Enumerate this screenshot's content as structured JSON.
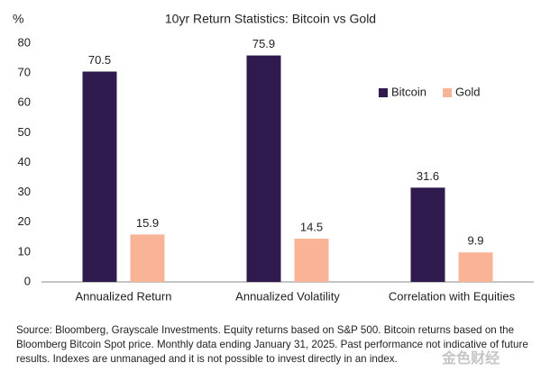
{
  "chart_data": {
    "type": "bar",
    "title": "10yr Return Statistics: Bitcoin vs Gold",
    "y_label": "%",
    "categories": [
      "Annualized Return",
      "Annualized Volatility",
      "Correlation with Equities"
    ],
    "series": [
      {
        "name": "Bitcoin",
        "color": "#2f1b4e",
        "values": [
          70.5,
          75.9,
          31.6
        ]
      },
      {
        "name": "Gold",
        "color": "#f9b497",
        "values": [
          15.9,
          14.5,
          9.9
        ]
      }
    ],
    "ylim": [
      0,
      80
    ],
    "yticks": [
      0,
      10,
      20,
      30,
      40,
      50,
      60,
      70,
      80
    ],
    "grid": false,
    "legend": "upper right",
    "note": "Source: Bloomberg, Grayscale Investments. Equity returns based on S&P 500. Bitcoin returns based on the Bloomberg Bitcoin Spot price. Monthly data ending January 31, 2025. Past performance not indicative of future results. Indexes are unmanaged and it is not possible to invest directly in an index.",
    "watermark": "金色财经"
  }
}
